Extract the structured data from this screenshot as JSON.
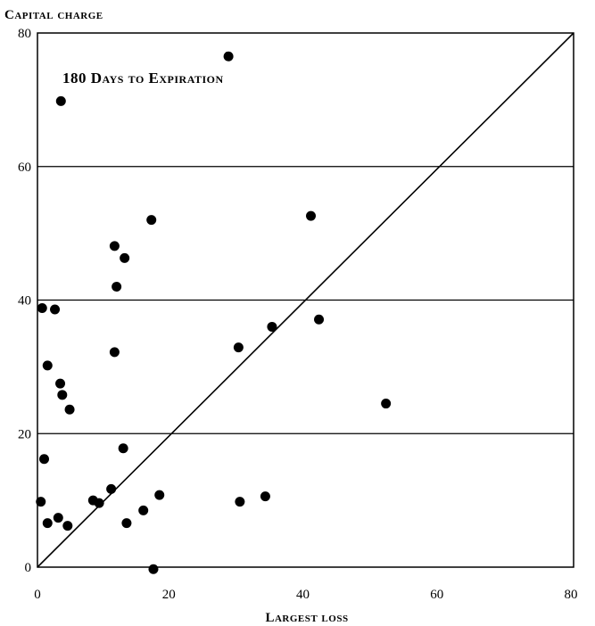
{
  "chart_data": {
    "type": "scatter",
    "title": "180 Days to Expiration",
    "xlabel": "Largest loss",
    "ylabel": "Capital charge",
    "xlim": [
      0,
      80
    ],
    "ylim": [
      0,
      80
    ],
    "x_ticks": [
      "0",
      "20",
      "40",
      "60",
      "80"
    ],
    "y_ticks": [
      "0",
      "20",
      "40",
      "60",
      "80"
    ],
    "gridlines_y": [
      20,
      40,
      60
    ],
    "reference_line": "y = x",
    "points": [
      {
        "x": 28.5,
        "y": 76.5
      },
      {
        "x": 3.5,
        "y": 69.8
      },
      {
        "x": 17,
        "y": 52
      },
      {
        "x": 40.8,
        "y": 52.6
      },
      {
        "x": 11.5,
        "y": 48.1
      },
      {
        "x": 13,
        "y": 46.3
      },
      {
        "x": 11.8,
        "y": 42
      },
      {
        "x": 0.7,
        "y": 38.8
      },
      {
        "x": 2.6,
        "y": 38.6
      },
      {
        "x": 35,
        "y": 36
      },
      {
        "x": 42,
        "y": 37.1
      },
      {
        "x": 30,
        "y": 32.9
      },
      {
        "x": 11.5,
        "y": 32.2
      },
      {
        "x": 1.5,
        "y": 30.2
      },
      {
        "x": 3.4,
        "y": 27.5
      },
      {
        "x": 3.7,
        "y": 25.8
      },
      {
        "x": 4.8,
        "y": 23.6
      },
      {
        "x": 52,
        "y": 24.5
      },
      {
        "x": 1,
        "y": 16.2
      },
      {
        "x": 12.8,
        "y": 17.8
      },
      {
        "x": 11,
        "y": 11.7
      },
      {
        "x": 18.2,
        "y": 10.8
      },
      {
        "x": 34,
        "y": 10.6
      },
      {
        "x": 0.5,
        "y": 9.8
      },
      {
        "x": 8.3,
        "y": 10
      },
      {
        "x": 9.2,
        "y": 9.6
      },
      {
        "x": 30.2,
        "y": 9.8
      },
      {
        "x": 15.8,
        "y": 8.5
      },
      {
        "x": 3.1,
        "y": 7.4
      },
      {
        "x": 1.5,
        "y": 6.6
      },
      {
        "x": 4.5,
        "y": 6.2
      },
      {
        "x": 13.3,
        "y": 6.6
      },
      {
        "x": 17.3,
        "y": -0.3
      }
    ]
  }
}
